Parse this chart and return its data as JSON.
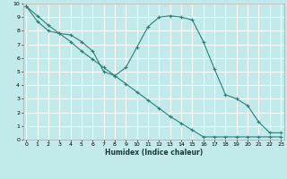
{
  "xlabel": "Humidex (Indice chaleur)",
  "bg_color": "#c2eaea",
  "grid_color": "#ffffff",
  "line_color": "#2e7d7d",
  "xlim": [
    -0.3,
    23.3
  ],
  "ylim": [
    0,
    10
  ],
  "xticks": [
    0,
    1,
    2,
    3,
    4,
    5,
    6,
    7,
    8,
    9,
    10,
    11,
    12,
    13,
    14,
    15,
    16,
    17,
    18,
    19,
    20,
    21,
    22,
    23
  ],
  "yticks": [
    0,
    1,
    2,
    3,
    4,
    5,
    6,
    7,
    8,
    9,
    10
  ],
  "curve_x": [
    0,
    1,
    2,
    3,
    4,
    5,
    6,
    7,
    8,
    9,
    10,
    11,
    12,
    13,
    14,
    15,
    16,
    17,
    18,
    19,
    20,
    21,
    22,
    23
  ],
  "curve_y": [
    9.8,
    8.7,
    8.0,
    7.8,
    7.7,
    7.2,
    6.5,
    5.0,
    4.7,
    5.3,
    6.8,
    8.3,
    9.0,
    9.1,
    9.0,
    8.8,
    7.2,
    5.2,
    3.3,
    3.0,
    2.5,
    1.3,
    0.5,
    0.5
  ],
  "diag_x": [
    0,
    1,
    2,
    3,
    4,
    5,
    6,
    7,
    8,
    9,
    10,
    11,
    12,
    13,
    14,
    15,
    16,
    17,
    18,
    19,
    20,
    21,
    22,
    23
  ],
  "diag_y": [
    9.8,
    9.1,
    8.4,
    7.8,
    7.2,
    6.5,
    5.9,
    5.3,
    4.7,
    4.1,
    3.5,
    2.9,
    2.3,
    1.7,
    1.2,
    0.7,
    0.2,
    0.2,
    0.2,
    0.2,
    0.2,
    0.2,
    0.2,
    0.2
  ],
  "xlabel_fontsize": 5.5,
  "tick_fontsize": 4.5
}
